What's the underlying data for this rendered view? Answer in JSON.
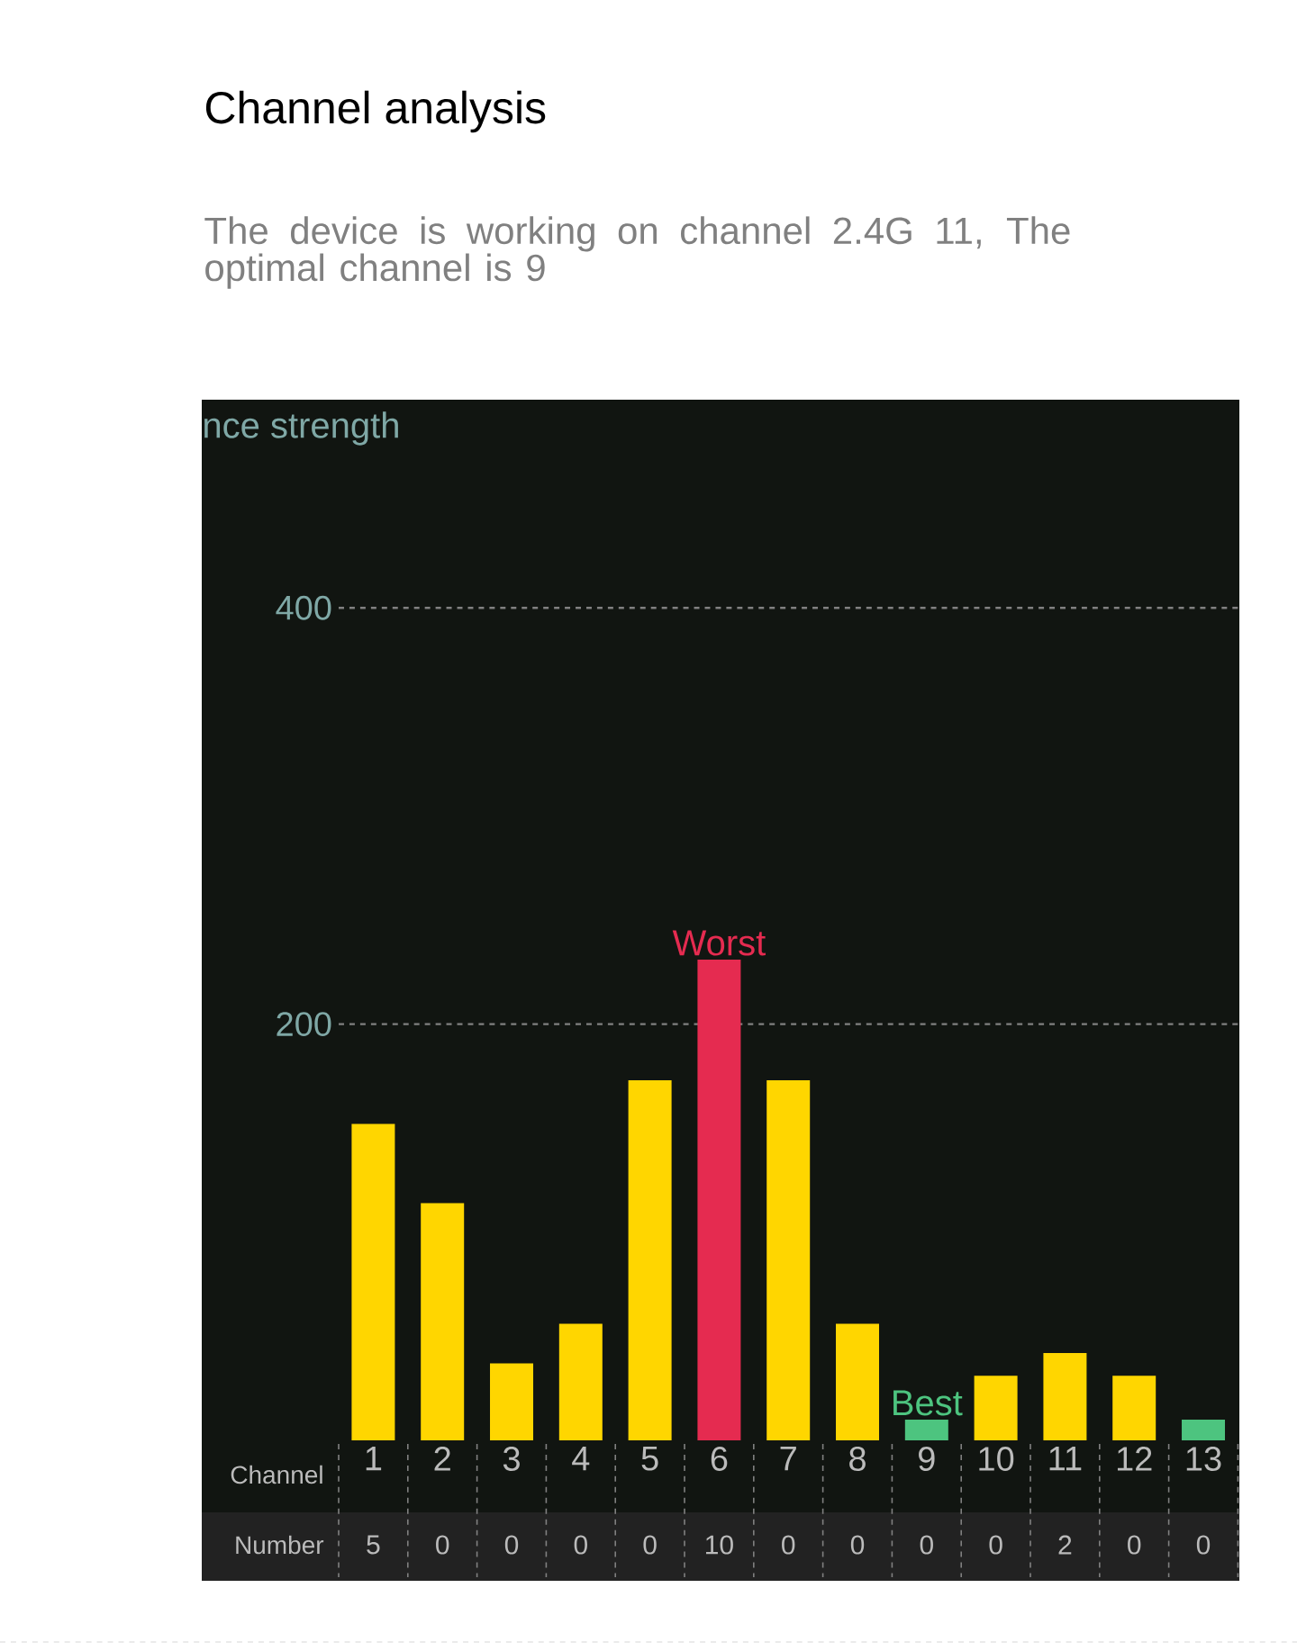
{
  "chart_data": {
    "type": "bar",
    "title": "Channel analysis",
    "subtitle": "The device is working on channel 2.4G 11, The optimal channel is 9",
    "ylabel": "nce strength",
    "xlabel": "Channel",
    "categories": [
      "1",
      "2",
      "3",
      "4",
      "5",
      "6",
      "7",
      "8",
      "9",
      "10",
      "11",
      "12",
      "13"
    ],
    "values": [
      152,
      114,
      37,
      56,
      173,
      231,
      173,
      56,
      10,
      31,
      42,
      31,
      10
    ],
    "colors": [
      "#ffd600",
      "#ffd600",
      "#ffd600",
      "#ffd600",
      "#ffd600",
      "#e52b50",
      "#ffd600",
      "#ffd600",
      "#4dc47f",
      "#ffd600",
      "#ffd600",
      "#ffd600",
      "#4dc47f"
    ],
    "ylim": [
      0,
      500
    ],
    "yticks": [
      200,
      400
    ],
    "grid": "y",
    "annotations": [
      {
        "text": "Worst",
        "x": "6",
        "y": 231
      },
      {
        "text": "Best",
        "x": "9",
        "y": 10
      },
      "Number",
      "5",
      "0",
      "0",
      "0",
      "0",
      "10",
      "0",
      "0",
      "0",
      "0",
      "2",
      "0",
      "0"
    ]
  }
}
